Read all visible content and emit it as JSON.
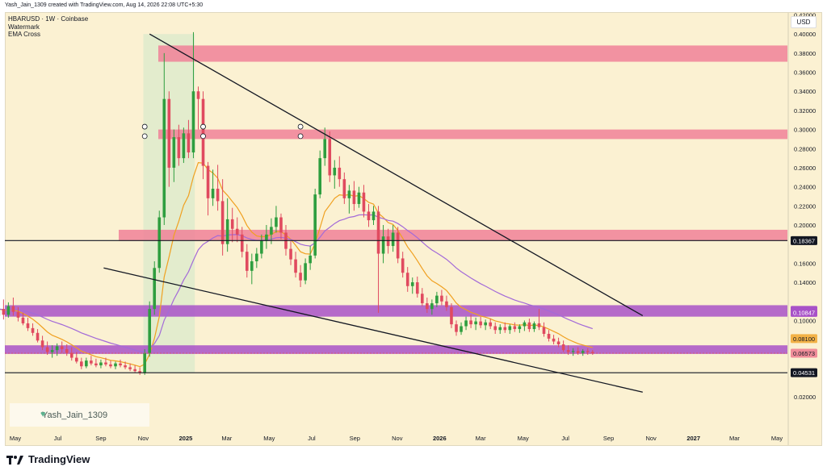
{
  "header": {
    "text": "Yash_Jain_1309 created with TradingView.com, Aug 14, 2026 22:08 UTC+5:30"
  },
  "legend": {
    "symbol": "HBARUSD · 1W · Coinbase",
    "indicator1": "Watermark",
    "indicator2": "EMA Cross"
  },
  "currency": "USD",
  "watermark": "Yash_Jain_1309",
  "footer": {
    "brand": "TradingView"
  },
  "colors": {
    "background": "#fbf1d2",
    "up_candle": "#2e9e3f",
    "down_candle": "#e04a5f",
    "ema_fast": "#f0a020",
    "ema_slow": "#a36ad8",
    "resistance_zone": "#f07a95",
    "support_zone": "#a852c8"
  },
  "chart_data": {
    "type": "candlestick",
    "y_axis": {
      "scale": "linear",
      "range": [
        0.0,
        0.43
      ],
      "ticks": [
        "0.42000",
        "0.40000",
        "0.38000",
        "0.36000",
        "0.34000",
        "0.32000",
        "0.30000",
        "0.28000",
        "0.26000",
        "0.24000",
        "0.22000",
        "0.20000",
        "0.16000",
        "0.14000",
        "0.10000",
        "0.02000"
      ]
    },
    "x_axis": {
      "ticks": [
        "May",
        "Jul",
        "Sep",
        "Nov",
        "2025",
        "Mar",
        "May",
        "Jul",
        "Sep",
        "Nov",
        "2026",
        "Mar",
        "May",
        "Jul",
        "Sep",
        "Nov",
        "2027",
        "Mar",
        "May"
      ]
    },
    "price_labels": [
      {
        "value": "0.18367",
        "style": "black"
      },
      {
        "value": "0.11062",
        "style": "purple"
      },
      {
        "value": "0.10847",
        "style": "purple"
      },
      {
        "value": "0.08100",
        "style": "orange"
      },
      {
        "value": "0.06573",
        "style": "red"
      },
      {
        "value": "0.04531",
        "style": "black"
      }
    ],
    "zones": [
      {
        "name": "resistance-0.38",
        "from": 0.371,
        "to": 0.388
      },
      {
        "name": "resistance-0.295",
        "from": 0.29,
        "to": 0.3
      },
      {
        "name": "resistance-0.19",
        "from": 0.184,
        "to": 0.195
      },
      {
        "name": "support-0.11",
        "from": 0.104,
        "to": 0.116
      },
      {
        "name": "support-0.07",
        "from": 0.065,
        "to": 0.074
      }
    ],
    "horizontal_lines": [
      0.1837,
      0.0453
    ],
    "trendlines": [
      {
        "name": "upper-trendline",
        "from": [
          "2024-11-10",
          0.4
        ],
        "to": [
          "2026-10-20",
          0.105
        ]
      },
      {
        "name": "lower-trendline",
        "from": [
          "2024-09-05",
          0.155
        ],
        "to": [
          "2026-10-20",
          0.025
        ]
      }
    ],
    "candles": [
      [
        "2024-04-07",
        0.105,
        0.117,
        0.097,
        0.112
      ],
      [
        "2024-04-14",
        0.112,
        0.122,
        0.101,
        0.106
      ],
      [
        "2024-04-21",
        0.106,
        0.119,
        0.103,
        0.115
      ],
      [
        "2024-04-28",
        0.115,
        0.124,
        0.105,
        0.109
      ],
      [
        "2024-05-05",
        0.109,
        0.114,
        0.099,
        0.103
      ],
      [
        "2024-05-12",
        0.103,
        0.108,
        0.095,
        0.097
      ],
      [
        "2024-05-19",
        0.097,
        0.103,
        0.089,
        0.092
      ],
      [
        "2024-05-26",
        0.092,
        0.097,
        0.084,
        0.087
      ],
      [
        "2024-06-02",
        0.087,
        0.091,
        0.077,
        0.079
      ],
      [
        "2024-06-09",
        0.079,
        0.084,
        0.069,
        0.072
      ],
      [
        "2024-06-16",
        0.072,
        0.078,
        0.064,
        0.067
      ],
      [
        "2024-06-23",
        0.067,
        0.074,
        0.061,
        0.069
      ],
      [
        "2024-06-30",
        0.069,
        0.076,
        0.063,
        0.073
      ],
      [
        "2024-07-07",
        0.073,
        0.078,
        0.066,
        0.07
      ],
      [
        "2024-07-14",
        0.07,
        0.075,
        0.063,
        0.066
      ],
      [
        "2024-07-21",
        0.066,
        0.072,
        0.058,
        0.061
      ],
      [
        "2024-07-28",
        0.061,
        0.067,
        0.055,
        0.057
      ],
      [
        "2024-08-04",
        0.057,
        0.061,
        0.049,
        0.052
      ],
      [
        "2024-08-11",
        0.052,
        0.061,
        0.05,
        0.058
      ],
      [
        "2024-08-18",
        0.058,
        0.063,
        0.053,
        0.055
      ],
      [
        "2024-08-25",
        0.055,
        0.06,
        0.051,
        0.053
      ],
      [
        "2024-09-01",
        0.053,
        0.059,
        0.05,
        0.056
      ],
      [
        "2024-09-08",
        0.056,
        0.061,
        0.052,
        0.054
      ],
      [
        "2024-09-15",
        0.054,
        0.058,
        0.05,
        0.052
      ],
      [
        "2024-09-22",
        0.052,
        0.057,
        0.049,
        0.055
      ],
      [
        "2024-09-29",
        0.055,
        0.059,
        0.051,
        0.053
      ],
      [
        "2024-10-06",
        0.053,
        0.057,
        0.049,
        0.051
      ],
      [
        "2024-10-13",
        0.051,
        0.055,
        0.047,
        0.049
      ],
      [
        "2024-10-20",
        0.049,
        0.053,
        0.045,
        0.047
      ],
      [
        "2024-10-27",
        0.047,
        0.051,
        0.043,
        0.045
      ],
      [
        "2024-11-03",
        0.045,
        0.07,
        0.043,
        0.066
      ],
      [
        "2024-11-10",
        0.066,
        0.12,
        0.062,
        0.112
      ],
      [
        "2024-11-17",
        0.112,
        0.162,
        0.106,
        0.155
      ],
      [
        "2024-11-24",
        0.155,
        0.215,
        0.15,
        0.208
      ],
      [
        "2024-12-01",
        0.208,
        0.38,
        0.2,
        0.332
      ],
      [
        "2024-12-08",
        0.332,
        0.34,
        0.24,
        0.26
      ],
      [
        "2024-12-15",
        0.26,
        0.3,
        0.245,
        0.292
      ],
      [
        "2024-12-22",
        0.292,
        0.305,
        0.262,
        0.27
      ],
      [
        "2024-12-29",
        0.27,
        0.302,
        0.265,
        0.296
      ],
      [
        "2025-01-05",
        0.296,
        0.31,
        0.27,
        0.276
      ],
      [
        "2025-01-12",
        0.276,
        0.402,
        0.27,
        0.34
      ],
      [
        "2025-01-19",
        0.34,
        0.345,
        0.3,
        0.332
      ],
      [
        "2025-01-26",
        0.332,
        0.34,
        0.248,
        0.262
      ],
      [
        "2025-02-02",
        0.262,
        0.266,
        0.21,
        0.228
      ],
      [
        "2025-02-09",
        0.228,
        0.258,
        0.22,
        0.238
      ],
      [
        "2025-02-16",
        0.238,
        0.263,
        0.215,
        0.225
      ],
      [
        "2025-02-23",
        0.225,
        0.248,
        0.168,
        0.18
      ],
      [
        "2025-03-02",
        0.18,
        0.228,
        0.172,
        0.206
      ],
      [
        "2025-03-09",
        0.206,
        0.218,
        0.182,
        0.196
      ],
      [
        "2025-03-16",
        0.196,
        0.208,
        0.182,
        0.19
      ],
      [
        "2025-03-23",
        0.19,
        0.198,
        0.166,
        0.172
      ],
      [
        "2025-03-30",
        0.172,
        0.18,
        0.145,
        0.152
      ],
      [
        "2025-04-06",
        0.152,
        0.17,
        0.138,
        0.162
      ],
      [
        "2025-04-13",
        0.162,
        0.176,
        0.155,
        0.17
      ],
      [
        "2025-04-20",
        0.17,
        0.19,
        0.165,
        0.184
      ],
      [
        "2025-04-27",
        0.184,
        0.2,
        0.175,
        0.19
      ],
      [
        "2025-05-04",
        0.19,
        0.207,
        0.18,
        0.198
      ],
      [
        "2025-05-11",
        0.198,
        0.22,
        0.192,
        0.208
      ],
      [
        "2025-05-18",
        0.208,
        0.212,
        0.185,
        0.192
      ],
      [
        "2025-05-25",
        0.192,
        0.2,
        0.168,
        0.175
      ],
      [
        "2025-06-01",
        0.175,
        0.183,
        0.158,
        0.164
      ],
      [
        "2025-06-08",
        0.164,
        0.172,
        0.145,
        0.15
      ],
      [
        "2025-06-15",
        0.15,
        0.158,
        0.135,
        0.142
      ],
      [
        "2025-06-22",
        0.142,
        0.165,
        0.138,
        0.16
      ],
      [
        "2025-06-29",
        0.16,
        0.178,
        0.153,
        0.168
      ],
      [
        "2025-07-06",
        0.168,
        0.238,
        0.165,
        0.232
      ],
      [
        "2025-07-13",
        0.232,
        0.278,
        0.228,
        0.27
      ],
      [
        "2025-07-20",
        0.27,
        0.302,
        0.262,
        0.29
      ],
      [
        "2025-07-27",
        0.29,
        0.298,
        0.245,
        0.252
      ],
      [
        "2025-08-03",
        0.252,
        0.268,
        0.238,
        0.26
      ],
      [
        "2025-08-10",
        0.26,
        0.272,
        0.24,
        0.248
      ],
      [
        "2025-08-17",
        0.248,
        0.255,
        0.222,
        0.228
      ],
      [
        "2025-08-24",
        0.228,
        0.242,
        0.212,
        0.236
      ],
      [
        "2025-08-31",
        0.236,
        0.246,
        0.215,
        0.222
      ],
      [
        "2025-09-07",
        0.222,
        0.24,
        0.218,
        0.234
      ],
      [
        "2025-09-14",
        0.234,
        0.242,
        0.208,
        0.214
      ],
      [
        "2025-09-21",
        0.214,
        0.222,
        0.198,
        0.205
      ],
      [
        "2025-09-28",
        0.205,
        0.22,
        0.2,
        0.214
      ],
      [
        "2025-10-05",
        0.214,
        0.22,
        0.108,
        0.17
      ],
      [
        "2025-10-12",
        0.17,
        0.2,
        0.16,
        0.188
      ],
      [
        "2025-10-19",
        0.188,
        0.196,
        0.17,
        0.178
      ],
      [
        "2025-10-26",
        0.178,
        0.2,
        0.172,
        0.192
      ],
      [
        "2025-11-02",
        0.192,
        0.198,
        0.16,
        0.165
      ],
      [
        "2025-11-09",
        0.165,
        0.172,
        0.145,
        0.15
      ],
      [
        "2025-11-16",
        0.15,
        0.156,
        0.13,
        0.136
      ],
      [
        "2025-11-23",
        0.136,
        0.145,
        0.128,
        0.14
      ],
      [
        "2025-11-30",
        0.14,
        0.146,
        0.124,
        0.128
      ],
      [
        "2025-12-07",
        0.128,
        0.134,
        0.115,
        0.118
      ],
      [
        "2025-12-14",
        0.118,
        0.124,
        0.108,
        0.112
      ],
      [
        "2025-12-21",
        0.112,
        0.122,
        0.106,
        0.118
      ],
      [
        "2025-12-28",
        0.118,
        0.13,
        0.114,
        0.126
      ],
      [
        "2026-01-04",
        0.126,
        0.132,
        0.116,
        0.12
      ],
      [
        "2026-01-11",
        0.12,
        0.126,
        0.11,
        0.114
      ],
      [
        "2026-01-18",
        0.114,
        0.118,
        0.092,
        0.096
      ],
      [
        "2026-01-25",
        0.096,
        0.1,
        0.084,
        0.088
      ],
      [
        "2026-02-01",
        0.088,
        0.098,
        0.085,
        0.094
      ],
      [
        "2026-02-08",
        0.094,
        0.104,
        0.09,
        0.1
      ],
      [
        "2026-02-15",
        0.1,
        0.106,
        0.092,
        0.096
      ],
      [
        "2026-02-22",
        0.096,
        0.103,
        0.09,
        0.099
      ],
      [
        "2026-03-01",
        0.099,
        0.104,
        0.092,
        0.095
      ],
      [
        "2026-03-08",
        0.095,
        0.101,
        0.09,
        0.098
      ],
      [
        "2026-03-15",
        0.098,
        0.102,
        0.091,
        0.094
      ],
      [
        "2026-03-22",
        0.094,
        0.098,
        0.086,
        0.09
      ],
      [
        "2026-03-29",
        0.09,
        0.096,
        0.086,
        0.093
      ],
      [
        "2026-04-05",
        0.093,
        0.098,
        0.087,
        0.09
      ],
      [
        "2026-04-12",
        0.09,
        0.096,
        0.086,
        0.094
      ],
      [
        "2026-04-19",
        0.094,
        0.098,
        0.088,
        0.091
      ],
      [
        "2026-04-26",
        0.091,
        0.096,
        0.087,
        0.094
      ],
      [
        "2026-05-03",
        0.094,
        0.1,
        0.089,
        0.098
      ],
      [
        "2026-05-10",
        0.098,
        0.102,
        0.088,
        0.091
      ],
      [
        "2026-05-17",
        0.091,
        0.099,
        0.088,
        0.097
      ],
      [
        "2026-05-24",
        0.097,
        0.112,
        0.09,
        0.093
      ],
      [
        "2026-05-31",
        0.093,
        0.098,
        0.083,
        0.086
      ],
      [
        "2026-06-07",
        0.086,
        0.09,
        0.078,
        0.081
      ],
      [
        "2026-06-14",
        0.081,
        0.085,
        0.075,
        0.078
      ],
      [
        "2026-06-21",
        0.078,
        0.082,
        0.072,
        0.075
      ],
      [
        "2026-06-28",
        0.075,
        0.079,
        0.067,
        0.069
      ],
      [
        "2026-07-05",
        0.069,
        0.074,
        0.064,
        0.067
      ],
      [
        "2026-07-12",
        0.067,
        0.071,
        0.063,
        0.068
      ],
      [
        "2026-07-19",
        0.068,
        0.072,
        0.064,
        0.066
      ],
      [
        "2026-07-26",
        0.066,
        0.07,
        0.063,
        0.068
      ],
      [
        "2026-08-02",
        0.068,
        0.071,
        0.064,
        0.067
      ],
      [
        "2026-08-09",
        0.067,
        0.069,
        0.064,
        0.0657
      ]
    ]
  }
}
